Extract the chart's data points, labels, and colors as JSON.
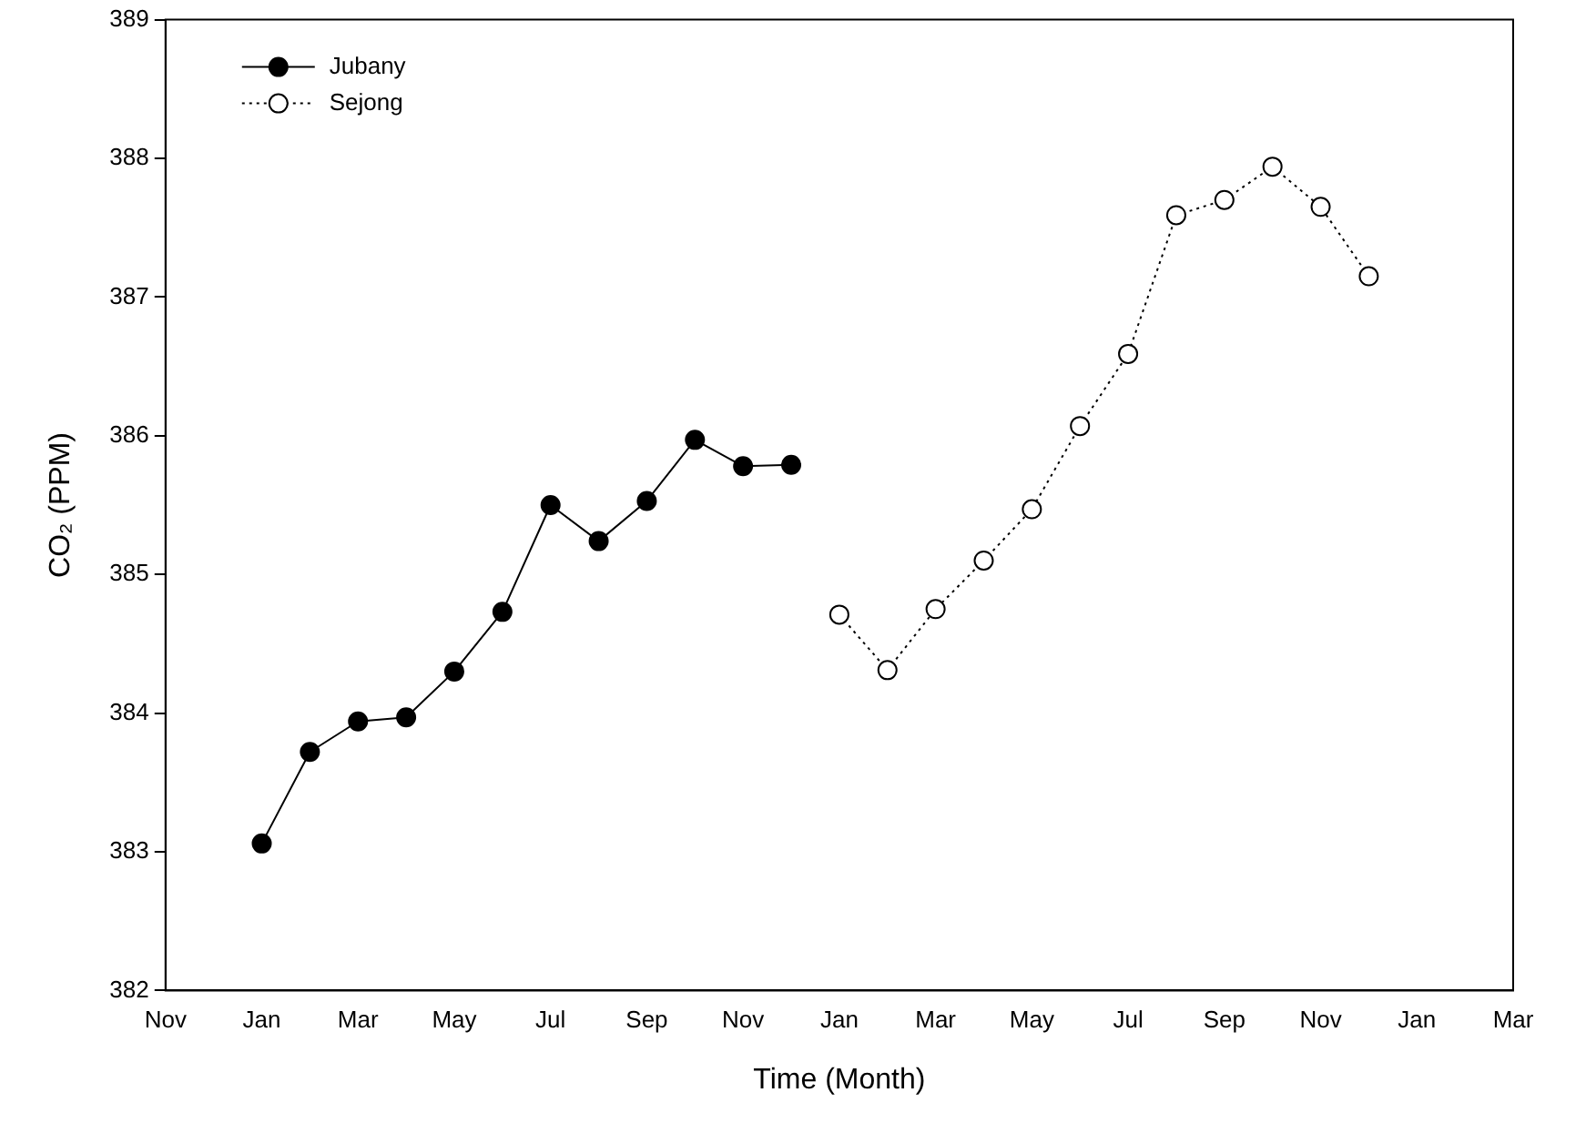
{
  "chart_data": {
    "type": "line",
    "xlabel": "Time (Month)",
    "ylabel": "CO₂ (PPM)",
    "categories": [
      "Nov",
      null,
      "Jan",
      null,
      "Mar",
      null,
      "May",
      null,
      "Jul",
      null,
      "Sep",
      null,
      "Nov",
      null,
      "Jan",
      null,
      "Mar",
      null,
      "May",
      null,
      "Jul",
      null,
      "Sep",
      null,
      "Nov",
      null,
      "Jan",
      null,
      "Mar"
    ],
    "series": [
      {
        "name": "Jubany",
        "color": "#000000",
        "line_style": "solid",
        "values": [
          null,
          null,
          383.06,
          383.72,
          383.94,
          383.97,
          384.3,
          384.73,
          385.5,
          385.24,
          385.53,
          385.97,
          385.78,
          385.79,
          null,
          null,
          null,
          null,
          null,
          null,
          null,
          null,
          null,
          null,
          null,
          null,
          null,
          null,
          null
        ]
      },
      {
        "name": "Sejong",
        "color": "#000000",
        "line_style": "dotted",
        "values": [
          null,
          null,
          null,
          null,
          null,
          null,
          null,
          null,
          null,
          null,
          null,
          null,
          null,
          null,
          384.71,
          384.31,
          384.75,
          385.1,
          385.47,
          386.07,
          386.59,
          387.59,
          387.7,
          387.94,
          387.65,
          387.15,
          null,
          null,
          null
        ]
      }
    ],
    "ylim": [
      382,
      389
    ],
    "yticks": [
      382,
      383,
      384,
      385,
      386,
      387,
      388,
      389
    ],
    "marker": "circle",
    "grid": false,
    "legend": "top left"
  }
}
